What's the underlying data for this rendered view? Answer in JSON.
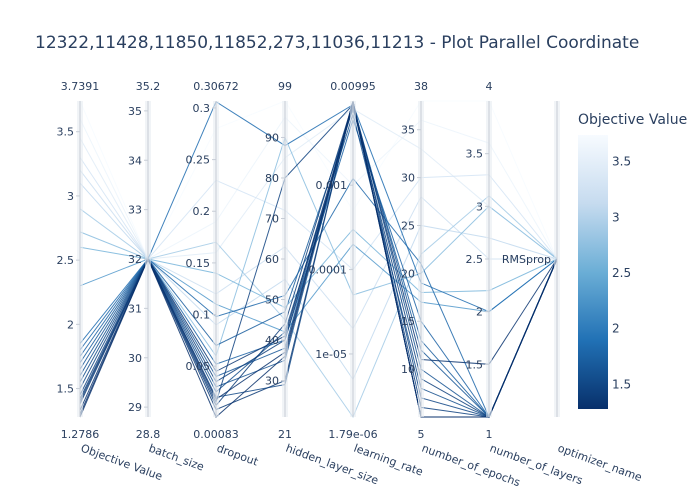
{
  "title": "12322,11428,11850,11852,273,11036,11213 - Plot Parallel Coordinate",
  "colorbar": {
    "title": "Objective Value",
    "ticks": [
      "3.5",
      "3",
      "2.5",
      "2",
      "1.5"
    ],
    "tick_values": [
      3.5,
      3.0,
      2.5,
      2.0,
      1.5
    ],
    "range": [
      1.2786,
      3.7391
    ],
    "colorscale": [
      "#08306b",
      "#2171b5",
      "#6baed6",
      "#c6dbef",
      "#f7fbff"
    ]
  },
  "chart_data": {
    "type": "parallel_coordinates",
    "title": "12322,11428,11850,11852,273,11036,11213 - Plot Parallel Coordinate",
    "color_by": "Objective Value",
    "dimensions": [
      {
        "label": "Objective Value",
        "range": [
          1.2786,
          3.7391
        ],
        "range_labels": [
          "3.7391",
          "1.2786"
        ],
        "ticks": [
          "3.5",
          "3",
          "2.5",
          "2",
          "1.5"
        ],
        "tick_values": [
          3.5,
          3.0,
          2.5,
          2.0,
          1.5
        ],
        "scale": "linear"
      },
      {
        "label": "batch_size",
        "range": [
          28.8,
          35.2
        ],
        "range_labels": [
          "35.2",
          "28.8"
        ],
        "ticks": [
          "35",
          "34",
          "33",
          "32",
          "31",
          "30",
          "29"
        ],
        "tick_values": [
          35,
          34,
          33,
          32,
          31,
          30,
          29
        ],
        "scale": "linear"
      },
      {
        "label": "dropout",
        "range": [
          0.00083,
          0.30672
        ],
        "range_labels": [
          "0.30672",
          "0.00083"
        ],
        "ticks": [
          "0.3",
          "0.25",
          "0.2",
          "0.15",
          "0.1",
          "0.05"
        ],
        "tick_values": [
          0.3,
          0.25,
          0.2,
          0.15,
          0.1,
          0.05
        ],
        "scale": "linear"
      },
      {
        "label": "hidden_layer_size",
        "range": [
          21,
          99
        ],
        "range_labels": [
          "99",
          "21"
        ],
        "ticks": [
          "90",
          "80",
          "70",
          "60",
          "50",
          "40",
          "30"
        ],
        "tick_values": [
          90,
          80,
          70,
          60,
          50,
          40,
          30
        ],
        "scale": "linear"
      },
      {
        "label": "learning_rate",
        "range": [
          1.79e-06,
          0.00995
        ],
        "range_labels": [
          "0.00995",
          "1.79e-06"
        ],
        "ticks": [
          "0.001",
          "0.0001",
          "1e-05"
        ],
        "tick_values": [
          0.001,
          0.0001,
          1e-05
        ],
        "scale": "log"
      },
      {
        "label": "number_of_epochs",
        "range": [
          5,
          38
        ],
        "range_labels": [
          "38",
          "5"
        ],
        "ticks": [
          "35",
          "30",
          "25",
          "20",
          "15",
          "10"
        ],
        "tick_values": [
          35,
          30,
          25,
          20,
          15,
          10
        ],
        "scale": "linear"
      },
      {
        "label": "number_of_layers",
        "range": [
          1,
          4
        ],
        "range_labels": [
          "4",
          "1"
        ],
        "ticks": [
          "3.5",
          "3",
          "2.5",
          "2",
          "1.5"
        ],
        "tick_values": [
          3.5,
          3,
          2.5,
          2,
          1.5
        ],
        "scale": "linear"
      },
      {
        "label": "optimizer_name",
        "range": [
          0,
          1
        ],
        "range_labels": [
          "",
          ""
        ],
        "ticks": [
          "RMSprop"
        ],
        "tick_values": [
          0.5
        ],
        "scale": "categorical"
      }
    ],
    "lines": [
      {
        "values": [
          3.7391,
          32,
          0.28,
          99,
          0.0005,
          38,
          4,
          0.5
        ]
      },
      {
        "values": [
          3.6,
          32,
          0.19,
          95,
          0.001,
          36,
          3.6,
          0.5
        ]
      },
      {
        "values": [
          3.45,
          32,
          0.16,
          85,
          0.008,
          33,
          3,
          0.5
        ]
      },
      {
        "values": [
          3.3,
          32,
          0.23,
          72,
          0.0001,
          30,
          3.3,
          0.5
        ]
      },
      {
        "values": [
          3.2,
          32,
          0.12,
          63,
          2e-05,
          28,
          2.5,
          0.5
        ]
      },
      {
        "values": [
          3.1,
          32,
          0.09,
          55,
          5e-06,
          25,
          2.7,
          0.5
        ]
      },
      {
        "values": [
          2.9,
          32,
          0.17,
          45,
          1.79e-06,
          22,
          3.1,
          0.5
        ]
      },
      {
        "values": [
          2.72,
          32,
          0.06,
          90,
          5e-05,
          20,
          3.0,
          0.5
        ]
      },
      {
        "values": [
          2.6,
          32,
          0.14,
          48,
          0.0003,
          18,
          2.2,
          0.5
        ]
      },
      {
        "values": [
          2.3,
          32,
          0.11,
          42,
          0.0002,
          17,
          2.0,
          0.5
        ]
      },
      {
        "values": [
          1.85,
          32,
          0.306,
          88,
          0.009,
          19,
          2.0,
          0.5
        ]
      },
      {
        "values": [
          1.8,
          32,
          0.098,
          51,
          0.0012,
          21,
          1.0,
          0.5
        ]
      },
      {
        "values": [
          1.75,
          32,
          0.052,
          40,
          0.006,
          15,
          1.0,
          0.5
        ]
      },
      {
        "values": [
          1.7,
          32,
          0.07,
          47,
          0.008,
          13,
          1.0,
          0.5
        ]
      },
      {
        "values": [
          1.65,
          32,
          0.04,
          38,
          0.009,
          12,
          1.0,
          0.5
        ]
      },
      {
        "values": [
          1.6,
          32,
          0.03,
          35,
          0.0095,
          10,
          1.0,
          0.5
        ]
      },
      {
        "values": [
          1.55,
          32,
          0.025,
          42,
          0.007,
          8,
          1.0,
          0.5
        ]
      },
      {
        "values": [
          1.5,
          32,
          0.02,
          29,
          0.0099,
          7,
          1.0,
          0.5
        ]
      },
      {
        "values": [
          1.45,
          32,
          0.015,
          80,
          0.009,
          6,
          1.0,
          0.5
        ]
      },
      {
        "values": [
          1.42,
          32,
          0.035,
          40,
          0.0085,
          9,
          1.0,
          0.5
        ]
      },
      {
        "values": [
          1.4,
          32,
          0.012,
          44,
          0.0095,
          5,
          1.0,
          0.5
        ]
      },
      {
        "values": [
          1.38,
          32,
          0.008,
          30,
          0.0098,
          5,
          1.0,
          0.5
        ]
      },
      {
        "values": [
          1.33,
          32,
          0.045,
          41,
          0.009,
          11,
          1.5,
          0.5
        ]
      },
      {
        "values": [
          1.3,
          32,
          0.018,
          37,
          0.0099,
          5,
          1.0,
          0.5
        ]
      },
      {
        "values": [
          1.2786,
          32,
          0.00083,
          36,
          0.0099,
          5,
          1.0,
          0.5
        ]
      }
    ]
  }
}
